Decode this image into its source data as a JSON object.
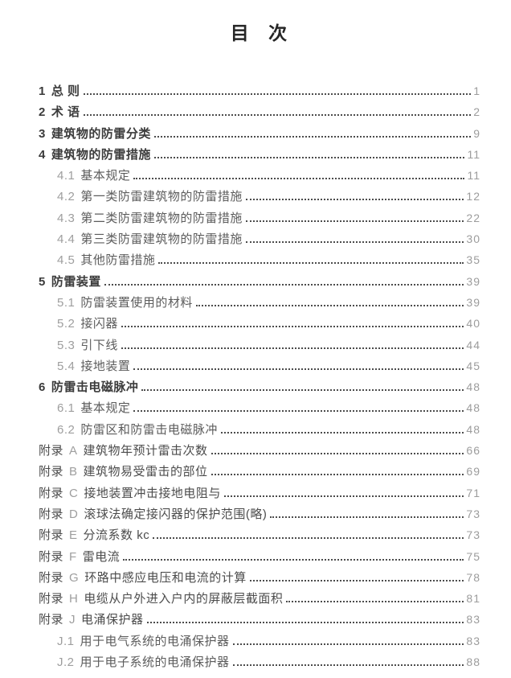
{
  "title": "目 次",
  "toc": {
    "entries": [
      {
        "kind": "main",
        "num": "1",
        "code": "",
        "label": "总 则",
        "page": "1"
      },
      {
        "kind": "main",
        "num": "2",
        "code": "",
        "label": "术  语",
        "page": "2"
      },
      {
        "kind": "main",
        "num": "3",
        "code": "",
        "label": "建筑物的防雷分类",
        "page": "9"
      },
      {
        "kind": "main",
        "num": "4",
        "code": "",
        "label": "建筑物的防雷措施",
        "page": "11"
      },
      {
        "kind": "sub",
        "num": "4.1",
        "code": "",
        "label": "基本规定",
        "page": "11"
      },
      {
        "kind": "sub",
        "num": "4.2",
        "code": "",
        "label": "第一类防雷建筑物的防雷措施",
        "page": "12"
      },
      {
        "kind": "sub",
        "num": "4.3",
        "code": "",
        "label": "第二类防雷建筑物的防雷措施",
        "page": "22"
      },
      {
        "kind": "sub",
        "num": "4.4",
        "code": "",
        "label": "第三类防雷建筑物的防雷措施",
        "page": "30"
      },
      {
        "kind": "sub",
        "num": "4.5",
        "code": "",
        "label": "其他防雷措施",
        "page": "35"
      },
      {
        "kind": "main",
        "num": "5",
        "code": "",
        "label": "防雷装置",
        "page": "39"
      },
      {
        "kind": "sub",
        "num": "5.1",
        "code": "",
        "label": "防雷装置使用的材料",
        "page": "39"
      },
      {
        "kind": "sub",
        "num": "5.2",
        "code": "",
        "label": "接闪器",
        "page": "40"
      },
      {
        "kind": "sub",
        "num": "5.3",
        "code": "",
        "label": "引下线",
        "page": "44"
      },
      {
        "kind": "sub",
        "num": "5.4",
        "code": "",
        "label": "接地装置",
        "page": "45"
      },
      {
        "kind": "main",
        "num": "6",
        "code": "",
        "label": "防雷击电磁脉冲",
        "page": "48"
      },
      {
        "kind": "sub",
        "num": "6.1",
        "code": "",
        "label": "基本规定",
        "page": "48"
      },
      {
        "kind": "sub",
        "num": "6.2",
        "code": "",
        "label": "防雷区和防雷击电磁脉冲",
        "page": "48"
      },
      {
        "kind": "appendix",
        "num": "附录",
        "code": "A",
        "label": "建筑物年预计雷击次数",
        "page": "66"
      },
      {
        "kind": "appendix",
        "num": "附录",
        "code": "B",
        "label": "建筑物易受雷击的部位",
        "page": "69"
      },
      {
        "kind": "appendix",
        "num": "附录",
        "code": "C",
        "label": "接地装置冲击接地电阻与",
        "page": "71"
      },
      {
        "kind": "appendix",
        "num": "附录",
        "code": "D",
        "label": "滚球法确定接闪器的保护范围(略)",
        "page": "73"
      },
      {
        "kind": "appendix",
        "num": "附录",
        "code": "E",
        "label": "分流系数 kc",
        "page": "73"
      },
      {
        "kind": "appendix",
        "num": "附录",
        "code": "F",
        "label": "雷电流",
        "page": "75"
      },
      {
        "kind": "appendix",
        "num": "附录",
        "code": "G",
        "label": "环路中感应电压和电流的计算",
        "page": "78"
      },
      {
        "kind": "appendix",
        "num": "附录",
        "code": "H",
        "label": "电缆从户外进入户内的屏蔽层截面积",
        "page": "81"
      },
      {
        "kind": "appendix",
        "num": "附录",
        "code": "J",
        "label": "电涌保护器",
        "page": "83"
      },
      {
        "kind": "sub",
        "num": "J.1",
        "code": "",
        "label": "用于电气系统的电涌保护器",
        "page": "83"
      },
      {
        "kind": "sub",
        "num": "J.2",
        "code": "",
        "label": "用于电子系统的电涌保护器",
        "page": "88"
      }
    ]
  }
}
